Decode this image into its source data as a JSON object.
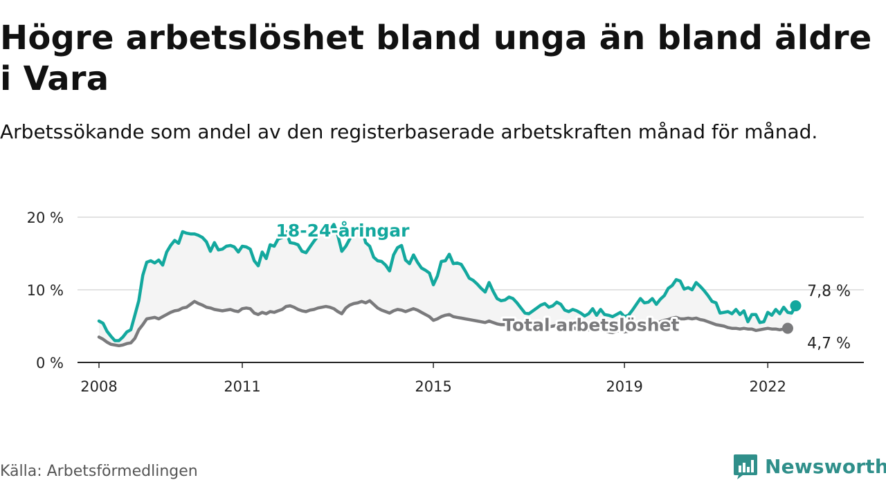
{
  "title": "Högre arbetslöshet bland unga än bland äldre i Vara",
  "subtitle": "Arbetssökande som andel av den registerbaserade arbetskraften månad för månad.",
  "source": "Källa: Arbetsförmedlingen",
  "brand": "Newsworthy",
  "colors": {
    "youth": "#13a89e",
    "total": "#7a7a7c",
    "band": "#f4f4f4",
    "grid": "#d9d9d9",
    "brand": "#2f8f8a"
  },
  "chart_data": {
    "type": "line",
    "ylim": [
      0,
      20
    ],
    "yticks": [
      0,
      10,
      20
    ],
    "ytick_labels": [
      "0 %",
      "10 %",
      "20 %"
    ],
    "xlim": [
      2008.0,
      2023.75
    ],
    "xticks": [
      2008,
      2011,
      2015,
      2019,
      2022
    ],
    "xtick_labels": [
      "2008",
      "2011",
      "2015",
      "2019",
      "2022"
    ],
    "series": [
      {
        "key": "youth",
        "name": "18-24-åringar",
        "end_label": "7,8 %",
        "start": 2008.0,
        "step": 0.083333,
        "values": [
          5.7,
          5.4,
          4.3,
          3.6,
          3.0,
          3.0,
          3.5,
          4.2,
          4.5,
          6.5,
          8.5,
          12.0,
          13.8,
          14.0,
          13.7,
          14.1,
          13.4,
          15.2,
          16.1,
          16.8,
          16.4,
          18.0,
          17.8,
          17.7,
          17.7,
          17.5,
          17.2,
          16.6,
          15.3,
          16.5,
          15.5,
          15.6,
          16.0,
          16.1,
          15.9,
          15.2,
          16.0,
          15.9,
          15.6,
          14.0,
          13.3,
          15.2,
          14.3,
          16.2,
          16.0,
          17.0,
          17.2,
          18.0,
          16.5,
          16.4,
          16.2,
          15.3,
          15.1,
          15.9,
          16.7,
          17.4,
          18.1,
          18.6,
          18.2,
          19.0,
          17.5,
          15.3,
          16.0,
          17.0,
          18.2,
          18.5,
          18.6,
          16.5,
          16.0,
          14.5,
          14.0,
          13.9,
          13.4,
          12.6,
          14.8,
          15.8,
          16.1,
          14.1,
          13.6,
          14.8,
          13.8,
          13.0,
          12.7,
          12.3,
          10.7,
          11.9,
          13.9,
          14.0,
          14.9,
          13.6,
          13.7,
          13.5,
          12.6,
          11.6,
          11.3,
          10.8,
          10.2,
          9.7,
          11.0,
          9.8,
          8.8,
          8.5,
          8.6,
          9.0,
          8.8,
          8.2,
          7.5,
          6.8,
          6.7,
          7.1,
          7.5,
          7.9,
          8.1,
          7.6,
          7.8,
          8.3,
          8.0,
          7.2,
          7.0,
          7.3,
          7.1,
          6.8,
          6.4,
          6.7,
          7.4,
          6.5,
          7.3,
          6.6,
          6.5,
          6.3,
          6.6,
          6.9,
          6.3,
          6.5,
          7.2,
          8.0,
          8.8,
          8.2,
          8.3,
          8.8,
          8.0,
          8.7,
          9.2,
          10.2,
          10.6,
          11.4,
          11.2,
          10.1,
          10.3,
          10.0,
          11.0,
          10.5,
          9.9,
          9.2,
          8.4,
          8.2,
          6.8,
          6.9,
          7.0,
          6.7,
          7.3,
          6.6,
          7.1,
          5.6,
          6.6,
          6.6,
          5.5,
          5.6,
          6.9,
          6.5,
          7.3,
          6.7,
          7.6,
          6.9,
          6.8,
          7.8
        ]
      },
      {
        "key": "total",
        "name": "Total arbetslöshet",
        "end_label": "4,7 %",
        "start": 2008.0,
        "step": 0.083333,
        "values": [
          3.5,
          3.2,
          2.8,
          2.5,
          2.4,
          2.3,
          2.4,
          2.6,
          2.7,
          3.3,
          4.5,
          5.2,
          6.0,
          6.1,
          6.2,
          6.0,
          6.3,
          6.6,
          6.9,
          7.1,
          7.2,
          7.5,
          7.6,
          8.0,
          8.4,
          8.1,
          7.9,
          7.6,
          7.5,
          7.3,
          7.2,
          7.1,
          7.2,
          7.3,
          7.1,
          7.0,
          7.4,
          7.5,
          7.4,
          6.8,
          6.6,
          6.9,
          6.7,
          7.0,
          6.9,
          7.1,
          7.3,
          7.7,
          7.8,
          7.6,
          7.3,
          7.1,
          7.0,
          7.2,
          7.3,
          7.5,
          7.6,
          7.7,
          7.6,
          7.4,
          7.0,
          6.7,
          7.5,
          7.9,
          8.1,
          8.2,
          8.4,
          8.2,
          8.5,
          8.0,
          7.5,
          7.2,
          7.0,
          6.8,
          7.1,
          7.3,
          7.2,
          7.0,
          7.2,
          7.4,
          7.2,
          6.9,
          6.6,
          6.3,
          5.8,
          6.0,
          6.3,
          6.5,
          6.6,
          6.3,
          6.2,
          6.1,
          6.0,
          5.9,
          5.8,
          5.7,
          5.6,
          5.5,
          5.7,
          5.5,
          5.3,
          5.2,
          5.2,
          5.4,
          5.3,
          5.2,
          5.0,
          4.8,
          4.7,
          4.8,
          4.9,
          5.0,
          5.1,
          4.9,
          5.0,
          5.1,
          5.0,
          4.8,
          4.7,
          4.8,
          4.6,
          4.5,
          4.4,
          4.5,
          4.6,
          4.4,
          4.5,
          4.3,
          4.2,
          4.1,
          4.3,
          4.4,
          4.2,
          4.3,
          4.6,
          4.8,
          5.0,
          5.1,
          5.1,
          5.3,
          5.4,
          5.6,
          5.8,
          5.9,
          6.1,
          6.2,
          6.0,
          6.0,
          6.1,
          6.0,
          6.1,
          5.9,
          5.8,
          5.6,
          5.4,
          5.2,
          5.1,
          5.0,
          4.8,
          4.7,
          4.7,
          4.6,
          4.7,
          4.6,
          4.6,
          4.4,
          4.5,
          4.6,
          4.7,
          4.6,
          4.6,
          4.5,
          4.6,
          4.7
        ]
      }
    ],
    "annotations": [
      {
        "series": "youth",
        "text": "18-24-åringar",
        "at_x": 2013.1,
        "at_y": 18.2
      },
      {
        "series": "total",
        "text": "Total arbetslöshet",
        "at_x": 2018.3,
        "at_y": 5.2
      }
    ]
  }
}
